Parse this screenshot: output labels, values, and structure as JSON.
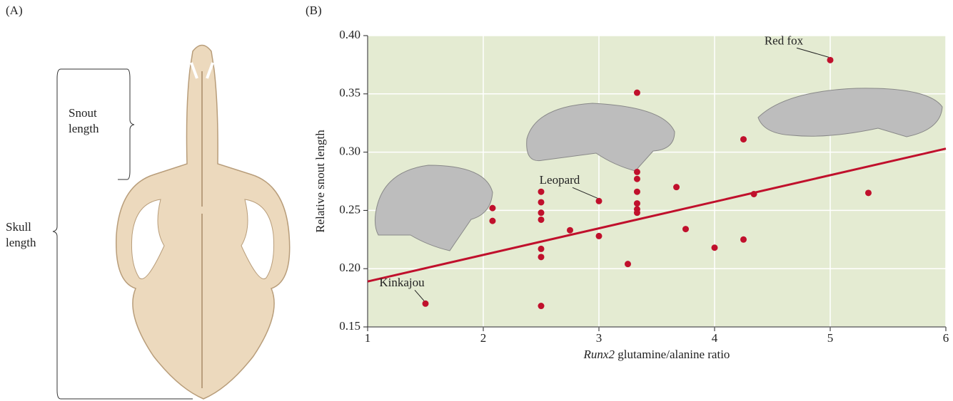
{
  "panel_a": {
    "label": "(A)",
    "snout_label": [
      "Snout",
      "length"
    ],
    "skull_label": [
      "Skull",
      "length"
    ]
  },
  "chart_data": {
    "type": "scatter",
    "panel_label": "(B)",
    "xlabel": "Runx2 glutamine/alanine ratio",
    "ylabel": "Relative snout length",
    "xlim": [
      1,
      6
    ],
    "xticks": [
      1,
      2,
      3,
      4,
      5,
      6
    ],
    "ylim": [
      0.15,
      0.4
    ],
    "yticks": [
      0.15,
      {
        "value": 0.2,
        "label": "0.20"
      },
      0.25,
      {
        "value": 0.3,
        "label": "0.30"
      },
      0.35,
      {
        "value": 0.4,
        "label": "0.40"
      }
    ],
    "grid": true,
    "background": "#e4ebd2",
    "color": "#c0102c",
    "x": [
      1.5,
      3.0,
      5.0,
      3.33,
      3.33,
      3.33,
      3.33,
      3.33,
      3.33,
      3.33,
      2.08,
      2.08,
      2.5,
      2.5,
      2.5,
      2.5,
      2.5,
      2.5,
      2.5,
      2.75,
      3.0,
      3.25,
      3.67,
      3.75,
      4.0,
      4.25,
      4.25,
      4.34,
      5.33
    ],
    "y": [
      0.17,
      0.258,
      0.379,
      0.351,
      0.283,
      0.277,
      0.266,
      0.256,
      0.251,
      0.248,
      0.252,
      0.241,
      0.266,
      0.257,
      0.248,
      0.242,
      0.217,
      0.21,
      0.168,
      0.233,
      0.228,
      0.204,
      0.27,
      0.234,
      0.218,
      0.311,
      0.225,
      0.264,
      0.265
    ],
    "trend_line": {
      "x": [
        1,
        6
      ],
      "y": [
        0.189,
        0.303
      ],
      "color": "#c0102c"
    },
    "annotations": [
      {
        "text": "Kinkajou",
        "x": 1.5,
        "y": 0.17
      },
      {
        "text": "Leopard",
        "x": 3.0,
        "y": 0.258
      },
      {
        "text": "Red fox",
        "x": 5.0,
        "y": 0.379
      }
    ]
  }
}
